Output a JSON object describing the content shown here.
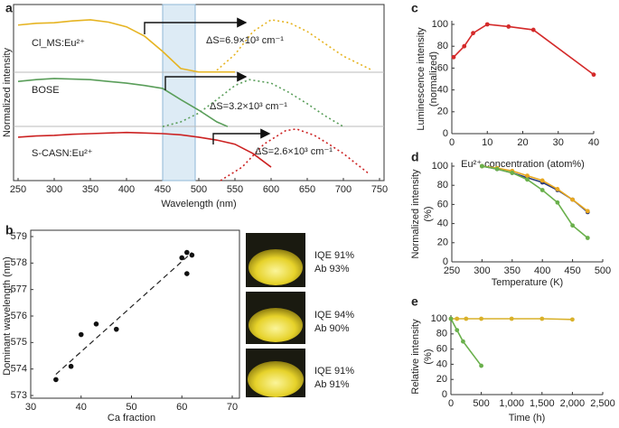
{
  "chart_data": [
    {
      "panel": "a",
      "type": "spectra",
      "xlabel": "Wavelength (nm)",
      "ylabel": "Normalized intensity",
      "xlim": [
        250,
        750
      ],
      "ylim": [
        0,
        3
      ],
      "xticks": [
        250,
        300,
        350,
        400,
        450,
        500,
        550,
        600,
        650,
        700,
        750
      ],
      "band": [
        450,
        495
      ],
      "series": [
        {
          "name": "Cl_MS:Eu²⁺",
          "color": "#e6b422",
          "annotation": "ΔS=6.9×10³ cm⁻¹",
          "excitation": {
            "x": [
              250,
              275,
              300,
              325,
              350,
              375,
              400,
              425,
              450,
              475,
              500,
              525,
              550
            ],
            "values": [
              2.65,
              2.68,
              2.69,
              2.72,
              2.74,
              2.7,
              2.62,
              2.46,
              2.2,
              1.91,
              1.85,
              1.85,
              1.85
            ]
          },
          "emission": {
            "x": [
              525,
              550,
              575,
              600,
              625,
              650,
              675,
              700,
              740
            ],
            "values": [
              1.88,
              2.15,
              2.54,
              2.74,
              2.69,
              2.54,
              2.33,
              2.12,
              1.88
            ]
          }
        },
        {
          "name": "BOSE",
          "color": "#5a9e5a",
          "annotation": "ΔS=3.2×10³ cm⁻¹",
          "excitation": {
            "x": [
              250,
              275,
              300,
              325,
              350,
              375,
              400,
              425,
              450,
              475,
              500,
              525,
              540
            ],
            "values": [
              1.69,
              1.72,
              1.74,
              1.73,
              1.72,
              1.69,
              1.66,
              1.62,
              1.57,
              1.38,
              1.2,
              1.0,
              0.92
            ]
          },
          "emission": {
            "x": [
              450,
              475,
              500,
              525,
              550,
              570,
              600,
              625,
              650,
              675,
              700
            ],
            "values": [
              0.92,
              1.0,
              1.15,
              1.38,
              1.62,
              1.72,
              1.66,
              1.5,
              1.31,
              1.1,
              0.92
            ]
          }
        },
        {
          "name": "S-CASN:Eu²⁺",
          "color": "#cc2222",
          "annotation": "ΔS=2.6×10³ cm⁻¹",
          "excitation": {
            "x": [
              250,
              275,
              300,
              325,
              350,
              375,
              400,
              425,
              450,
              475,
              500,
              525,
              550,
              575,
              600
            ],
            "values": [
              0.74,
              0.76,
              0.77,
              0.79,
              0.8,
              0.81,
              0.82,
              0.81,
              0.8,
              0.78,
              0.74,
              0.69,
              0.62,
              0.46,
              0.23
            ]
          },
          "emission": {
            "x": [
              530,
              560,
              590,
              620,
              635,
              660,
              680,
              700,
              735
            ],
            "values": [
              0,
              0.23,
              0.62,
              0.85,
              0.88,
              0.77,
              0.62,
              0.46,
              0.12
            ]
          }
        }
      ]
    },
    {
      "panel": "b",
      "type": "scatter",
      "xlabel": "Ca fraction",
      "ylabel": "Dominant wavelength (nm)",
      "xlim": [
        30,
        70
      ],
      "ylim": [
        573,
        579
      ],
      "xticks": [
        30,
        40,
        50,
        60,
        70
      ],
      "yticks": [
        573,
        574,
        575,
        576,
        577,
        578,
        579
      ],
      "color": "#111111",
      "x": [
        35,
        38,
        40,
        43,
        47,
        60,
        61,
        61,
        62
      ],
      "values": [
        573.6,
        574.1,
        575.3,
        575.7,
        575.5,
        578.2,
        578.4,
        577.6,
        578.3
      ],
      "fit": {
        "x": [
          35,
          62
        ],
        "values": [
          573.8,
          578.4
        ]
      },
      "samples": [
        {
          "lines": [
            "IQE 91%",
            "Ab 93%"
          ]
        },
        {
          "lines": [
            "IQE 94%",
            "Ab 90%"
          ]
        },
        {
          "lines": [
            "IQE 91%",
            "Ab 91%"
          ]
        }
      ]
    },
    {
      "panel": "c",
      "type": "line",
      "xlabel": "Eu²⁺ concentration (atom%)",
      "ylabel": [
        "Luminescence intensity",
        "(normalized)"
      ],
      "xlim": [
        0,
        40
      ],
      "ylim": [
        0,
        100
      ],
      "xticks": [
        0,
        10,
        20,
        30,
        40
      ],
      "yticks": [
        0,
        20,
        40,
        60,
        80,
        100
      ],
      "series": [
        {
          "color": "#d42a2a",
          "x": [
            0.5,
            3.5,
            6,
            10,
            16,
            23,
            40
          ],
          "values": [
            70,
            80,
            92,
            100,
            98,
            95,
            54
          ]
        }
      ]
    },
    {
      "panel": "d",
      "type": "line",
      "xlabel": "Temperature (K)",
      "ylabel": [
        "Normalized intensity",
        "(%)"
      ],
      "xlim": [
        250,
        500
      ],
      "ylim": [
        0,
        100
      ],
      "xticks": [
        250,
        300,
        350,
        400,
        450,
        500
      ],
      "yticks": [
        0,
        20,
        40,
        60,
        80,
        100
      ],
      "series": [
        {
          "color": "#2b3a7a",
          "x": [
            300,
            325,
            350,
            375,
            400,
            425,
            450,
            475
          ],
          "values": [
            100,
            97,
            93,
            88,
            83,
            75,
            65,
            52
          ]
        },
        {
          "color": "#e8a820",
          "x": [
            300,
            325,
            350,
            375,
            400,
            425,
            450,
            475
          ],
          "values": [
            100,
            98,
            95,
            90,
            85,
            76,
            65,
            53
          ]
        },
        {
          "color": "#6ab04c",
          "x": [
            300,
            325,
            350,
            375,
            400,
            425,
            450,
            475
          ],
          "values": [
            100,
            97,
            93,
            86,
            75,
            62,
            38,
            25
          ]
        }
      ]
    },
    {
      "panel": "e",
      "type": "line",
      "xlabel": "Time (h)",
      "ylabel": [
        "Relative intensity",
        "(%)"
      ],
      "xlim": [
        0,
        2500
      ],
      "ylim": [
        0,
        100
      ],
      "xticks": [
        0,
        500,
        {
          "value": 1000,
          "label": "1,000"
        },
        {
          "value": 1500,
          "label": "1,500"
        },
        {
          "value": 2000,
          "label": "2,000"
        },
        {
          "value": 2500,
          "label": "2,500"
        }
      ],
      "yticks": [
        0,
        20,
        40,
        60,
        80,
        100
      ],
      "series": [
        {
          "color": "#d9b12a",
          "x": [
            0,
            100,
            250,
            500,
            1000,
            1500,
            2000
          ],
          "values": [
            100,
            100,
            100,
            100,
            100,
            100,
            99
          ]
        },
        {
          "color": "#6ab04c",
          "x": [
            0,
            100,
            200,
            500
          ],
          "values": [
            100,
            85,
            70,
            38
          ]
        }
      ]
    }
  ]
}
